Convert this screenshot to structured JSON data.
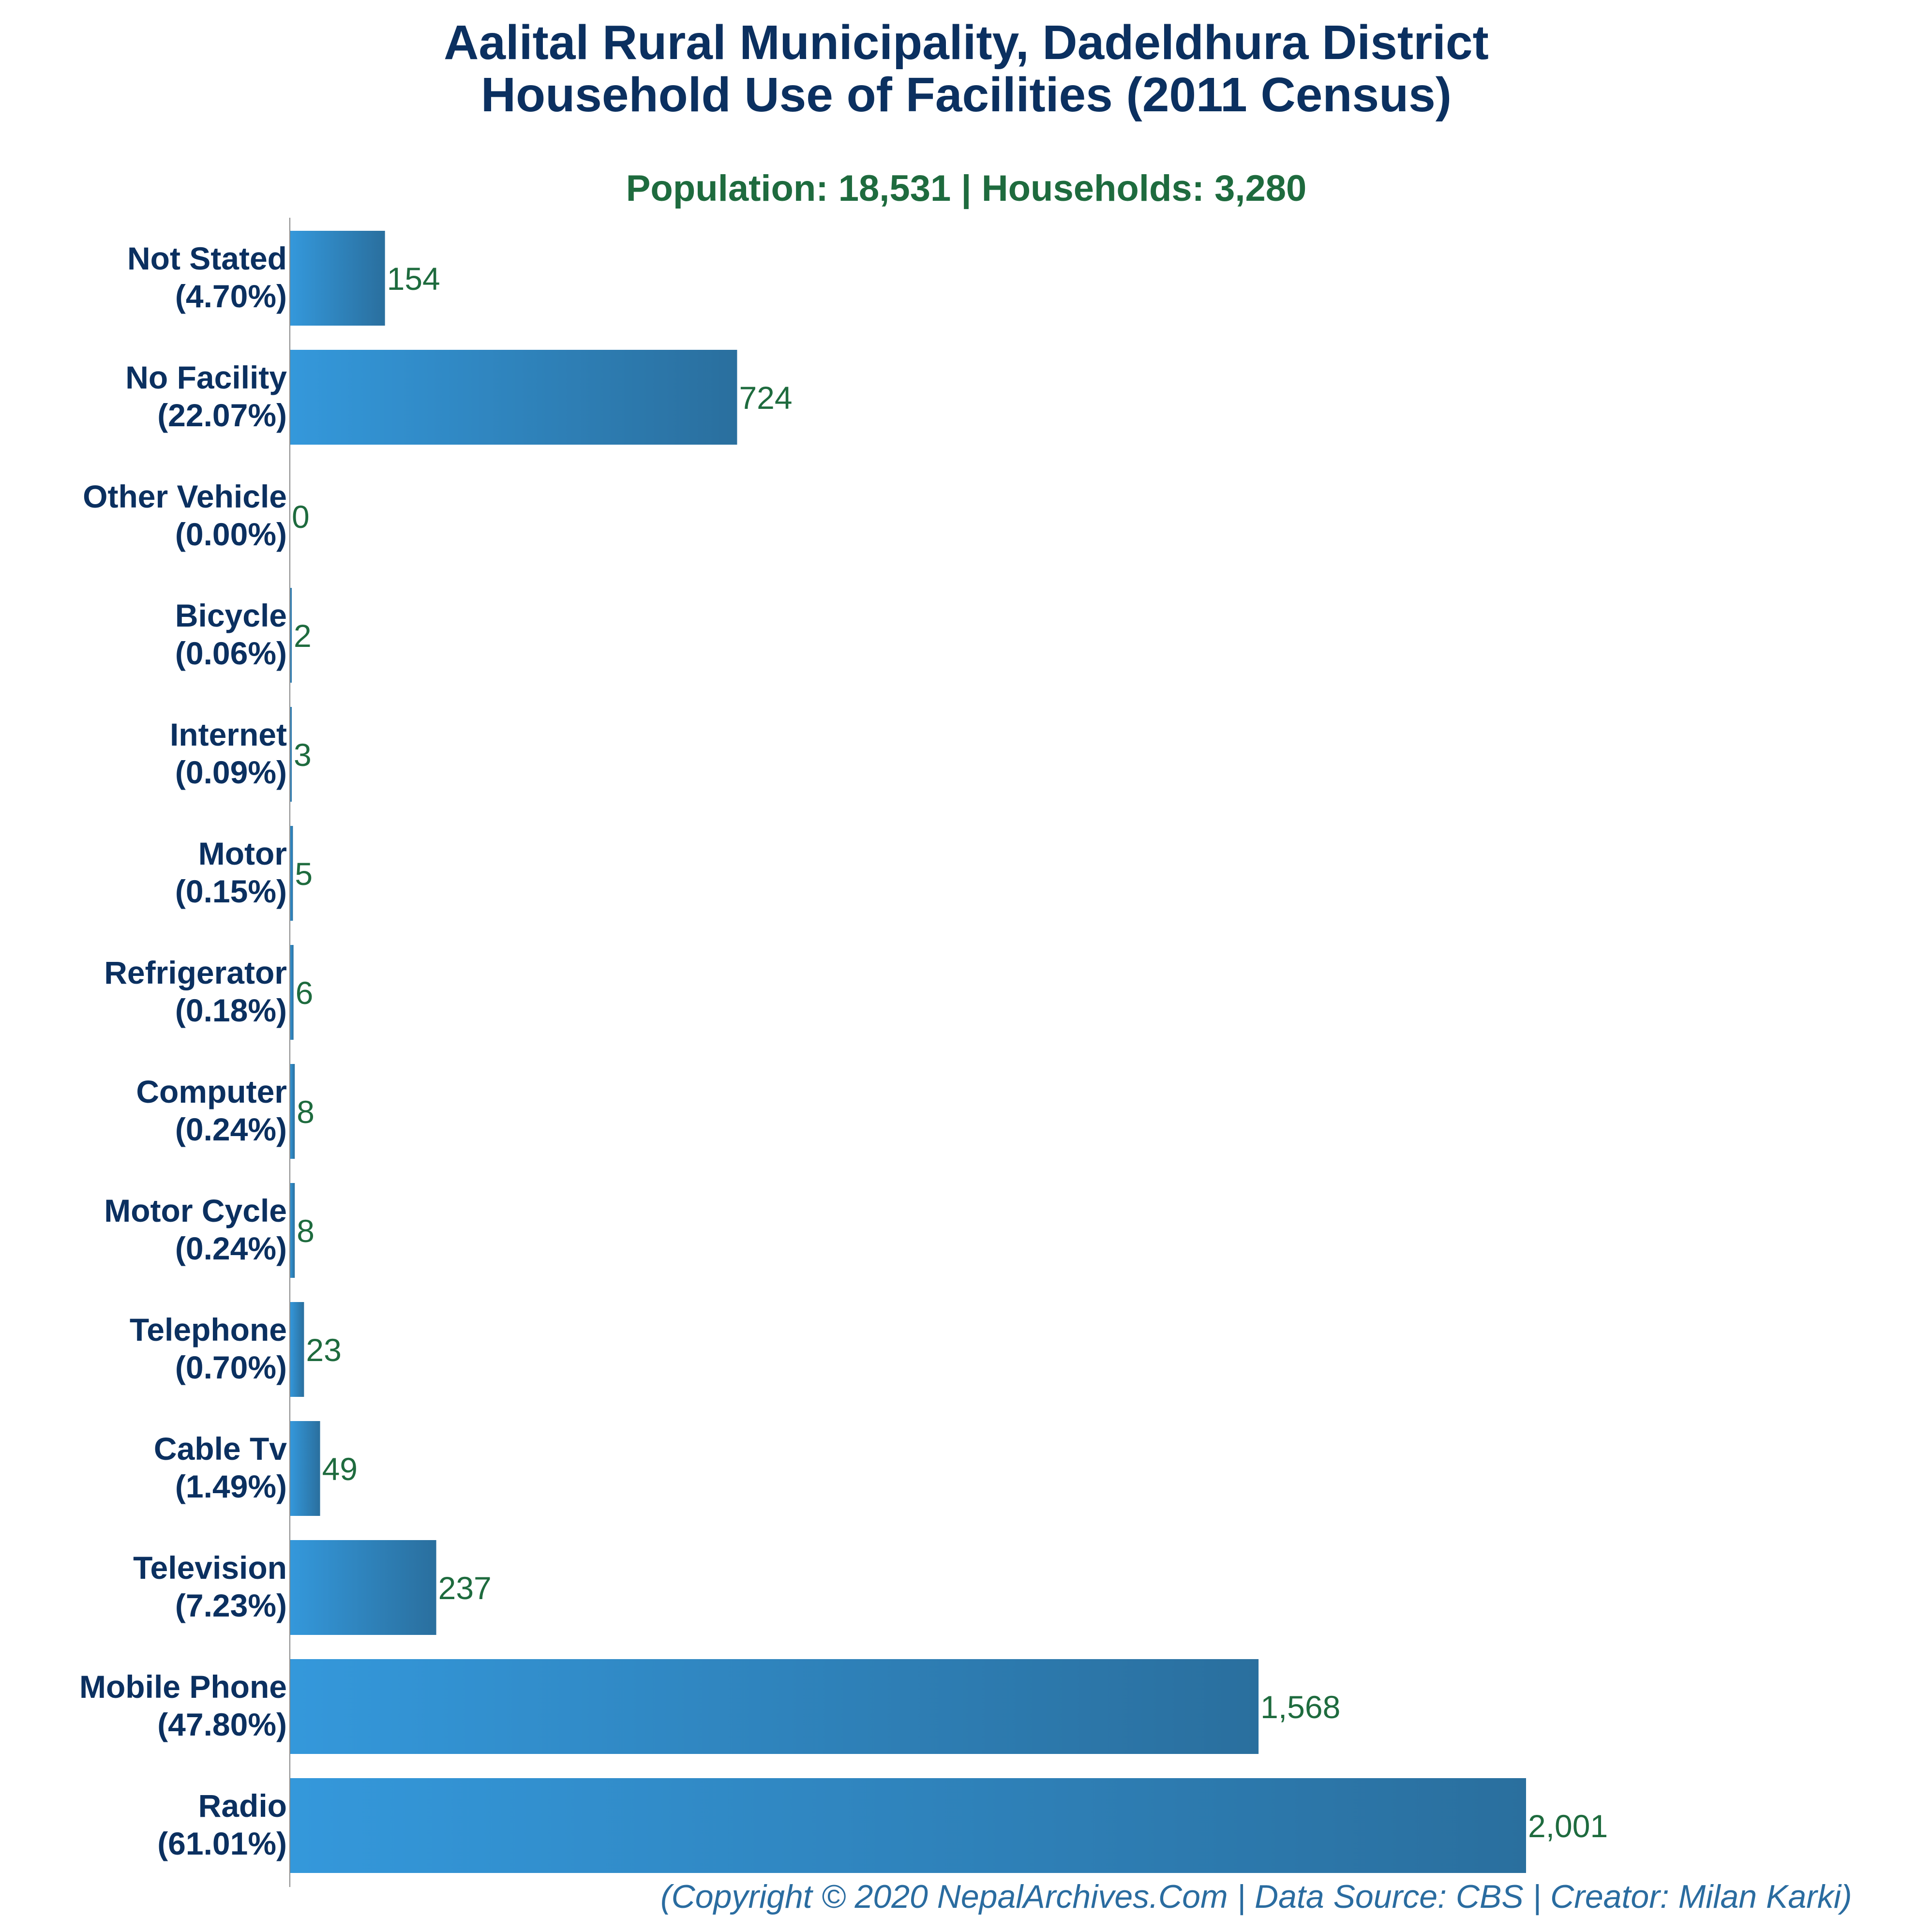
{
  "chart_data": {
    "type": "bar",
    "orientation": "horizontal",
    "title_line1": "Aalital Rural Municipality, Dadeldhura District",
    "title_line2": "Household Use of Facilities (2011 Census)",
    "subtitle": "Population: 18,531 | Households: 3,280",
    "categories": [
      {
        "name": "Not Stated",
        "pct": "(4.70%)",
        "value": 154,
        "value_label": "154"
      },
      {
        "name": "No Facility",
        "pct": "(22.07%)",
        "value": 724,
        "value_label": "724"
      },
      {
        "name": "Other Vehicle",
        "pct": "(0.00%)",
        "value": 0,
        "value_label": "0"
      },
      {
        "name": "Bicycle",
        "pct": "(0.06%)",
        "value": 2,
        "value_label": "2"
      },
      {
        "name": "Internet",
        "pct": "(0.09%)",
        "value": 3,
        "value_label": "3"
      },
      {
        "name": "Motor",
        "pct": "(0.15%)",
        "value": 5,
        "value_label": "5"
      },
      {
        "name": "Refrigerator",
        "pct": "(0.18%)",
        "value": 6,
        "value_label": "6"
      },
      {
        "name": "Computer",
        "pct": "(0.24%)",
        "value": 8,
        "value_label": "8"
      },
      {
        "name": "Motor Cycle",
        "pct": "(0.24%)",
        "value": 8,
        "value_label": "8"
      },
      {
        "name": "Telephone",
        "pct": "(0.70%)",
        "value": 23,
        "value_label": "23"
      },
      {
        "name": "Cable Tv",
        "pct": "(1.49%)",
        "value": 49,
        "value_label": "49"
      },
      {
        "name": "Television",
        "pct": "(7.23%)",
        "value": 237,
        "value_label": "237"
      },
      {
        "name": "Mobile Phone",
        "pct": "(47.80%)",
        "value": 1568,
        "value_label": "1,568"
      },
      {
        "name": "Radio",
        "pct": "(61.01%)",
        "value": 2001,
        "value_label": "2,001"
      }
    ],
    "xlim": [
      0,
      2001
    ],
    "grid": false,
    "colors": {
      "bar_start": "#3498db",
      "bar_end": "#2a6f9e",
      "title": "#0b3060",
      "subtitle": "#1e6b3e",
      "value_label": "#1e6b3e",
      "footer": "#2a6ca0",
      "axis": "#888888"
    },
    "footer": "(Copyright © 2020 NepalArchives.Com | Data Source: CBS | Creator: Milan Karki)"
  }
}
